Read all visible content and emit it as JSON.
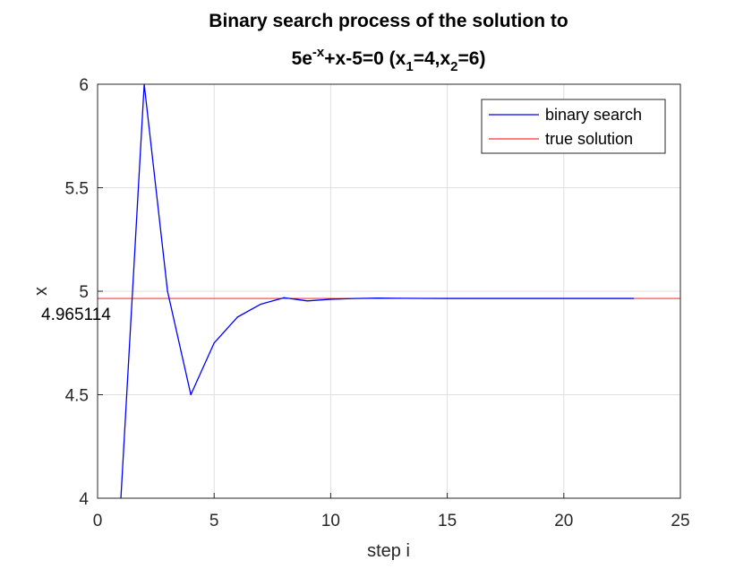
{
  "chart_data": {
    "type": "line",
    "title_line1": "Binary search process of the solution to",
    "title_line2": {
      "base": "5e",
      "sup": "-x",
      "rest": "+x-5=0 (x",
      "sub1": "1",
      "mid": "=4,x",
      "sub2": "2",
      "end": "=6)"
    },
    "xlabel": "step i",
    "ylabel": "x",
    "xlim": [
      0,
      25
    ],
    "ylim": [
      4,
      6
    ],
    "xticks": [
      0,
      5,
      10,
      15,
      20,
      25
    ],
    "yticks": [
      4,
      4.5,
      5,
      5.5,
      6
    ],
    "xtick_labels": [
      "0",
      "5",
      "10",
      "15",
      "20",
      "25"
    ],
    "ytick_labels": [
      "4",
      "4.5",
      "5",
      "5.5",
      "6"
    ],
    "grid": true,
    "legend_position": "top-right",
    "annotation": "4.965114",
    "series": [
      {
        "name": "binary search",
        "color": "#0000ff",
        "x": [
          1,
          2,
          3,
          4,
          5,
          6,
          7,
          8,
          9,
          10,
          11,
          12,
          13,
          14,
          15,
          16,
          17,
          18,
          19,
          20,
          21,
          22,
          23
        ],
        "y": [
          4,
          6,
          5,
          4.5,
          4.75,
          4.875,
          4.9375,
          4.96875,
          4.953125,
          4.9609375,
          4.96484375,
          4.966796875,
          4.9658203125,
          4.96533203125,
          4.965087890625,
          4.9652099609375,
          4.96514892578125,
          4.965118408203125,
          4.965103149414063,
          4.965110778808594,
          4.965114593505859,
          4.965112686157227,
          4.965113639831543
        ]
      },
      {
        "name": "true solution",
        "color": "#ff0000",
        "y_constant": 4.965114
      }
    ]
  }
}
